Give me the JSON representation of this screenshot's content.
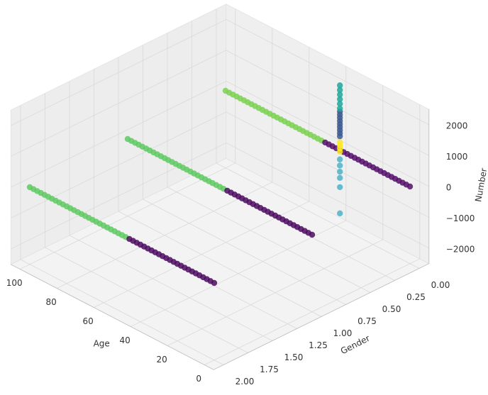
{
  "chart_data": {
    "type": "scatter3d",
    "xlabel": "Age",
    "ylabel": "Gender",
    "zlabel": "Number",
    "xlim": [
      -5,
      105
    ],
    "ylim": [
      -0.1,
      2.1
    ],
    "zlim": [
      -2500,
      2500
    ],
    "xticks": [
      0,
      20,
      40,
      60,
      80,
      100
    ],
    "yticks": [
      {
        "value": 0,
        "label": "0.00"
      },
      {
        "value": 0.25,
        "label": "0.25"
      },
      {
        "value": 0.5,
        "label": "0.50"
      },
      {
        "value": 0.75,
        "label": "0.75"
      },
      {
        "value": 1,
        "label": "1.00"
      },
      {
        "value": 1.25,
        "label": "1.25"
      },
      {
        "value": 1.5,
        "label": "1.50"
      },
      {
        "value": 1.75,
        "label": "1.75"
      },
      {
        "value": 2,
        "label": "2.00"
      }
    ],
    "zticks": [
      {
        "value": -2000,
        "label": "−2000"
      },
      {
        "value": -1000,
        "label": "−1000"
      },
      0,
      1000,
      2000
    ],
    "grid": true,
    "series": [
      {
        "color": "#7ad151",
        "x": [
          48,
          50,
          52,
          54,
          56,
          58,
          60,
          62,
          64,
          66,
          68,
          70,
          72,
          74,
          76,
          78,
          80,
          82,
          84,
          86,
          88,
          90,
          92,
          94,
          96,
          98,
          100
        ],
        "y": [
          0,
          0,
          0,
          0,
          0,
          0,
          0,
          0,
          0,
          0,
          0,
          0,
          0,
          0,
          0,
          0,
          0,
          0,
          0,
          0,
          0,
          0,
          0,
          0,
          0,
          0,
          0
        ],
        "z": [
          0,
          0,
          0,
          0,
          0,
          0,
          0,
          0,
          0,
          0,
          0,
          0,
          0,
          0,
          0,
          0,
          0,
          0,
          0,
          0,
          0,
          0,
          0,
          0,
          0,
          0,
          0
        ]
      },
      {
        "color": "#540e6a",
        "x": [
          0,
          2,
          4,
          6,
          8,
          10,
          12,
          14,
          16,
          18,
          20,
          22,
          24,
          26,
          28,
          30,
          32,
          34,
          36,
          38,
          40,
          42,
          44,
          46
        ],
        "y": [
          0,
          0,
          0,
          0,
          0,
          0,
          0,
          0,
          0,
          0,
          0,
          0,
          0,
          0,
          0,
          0,
          0,
          0,
          0,
          0,
          0,
          0,
          0,
          0
        ],
        "z": [
          0,
          0,
          0,
          0,
          0,
          0,
          0,
          0,
          0,
          0,
          0,
          0,
          0,
          0,
          0,
          0,
          0,
          0,
          0,
          0,
          0,
          0,
          0,
          0
        ]
      },
      {
        "color": "#4eb3c9",
        "x": [
          38,
          38,
          38,
          38,
          38,
          38
        ],
        "y": [
          0,
          0,
          0,
          0,
          0,
          0
        ],
        "z": [
          -300,
          -500,
          -700,
          -900,
          -1200,
          -2050
        ]
      },
      {
        "color": "#3e5a8f",
        "x": [
          38,
          38,
          38,
          38,
          38,
          38,
          38,
          38,
          38
        ],
        "y": [
          0,
          0,
          0,
          0,
          0,
          0,
          0,
          0,
          0
        ],
        "z": [
          1250,
          1150,
          1050,
          950,
          850,
          750,
          650,
          550,
          450
        ]
      },
      {
        "color": "#fde725",
        "x": [
          38,
          38,
          38,
          38
        ],
        "y": [
          0,
          0,
          0,
          0
        ],
        "z": [
          250,
          150,
          50,
          -50
        ]
      },
      {
        "color": "#1fa79a",
        "x": [
          38,
          38,
          38,
          38,
          38,
          38
        ],
        "y": [
          0,
          0,
          0,
          0,
          0,
          0
        ],
        "z": [
          2100,
          1950,
          1800,
          1650,
          1500,
          1350
        ]
      },
      {
        "color": "#5ec962",
        "x": [
          48,
          50,
          52,
          54,
          56,
          58,
          60,
          62,
          64,
          66,
          68,
          70,
          72,
          74,
          76,
          78,
          80,
          82,
          84,
          86,
          88,
          90,
          92,
          94,
          96,
          98,
          100
        ],
        "y": [
          1,
          1,
          1,
          1,
          1,
          1,
          1,
          1,
          1,
          1,
          1,
          1,
          1,
          1,
          1,
          1,
          1,
          1,
          1,
          1,
          1,
          1,
          1,
          1,
          1,
          1,
          1
        ],
        "z": [
          0,
          0,
          0,
          0,
          0,
          0,
          0,
          0,
          0,
          0,
          0,
          0,
          0,
          0,
          0,
          0,
          0,
          0,
          0,
          0,
          0,
          0,
          0,
          0,
          0,
          0,
          0
        ]
      },
      {
        "color": "#4b0a60",
        "x": [
          0,
          2,
          4,
          6,
          8,
          10,
          12,
          14,
          16,
          18,
          20,
          22,
          24,
          26,
          28,
          30,
          32,
          34,
          36,
          38,
          40,
          42,
          44,
          46
        ],
        "y": [
          1,
          1,
          1,
          1,
          1,
          1,
          1,
          1,
          1,
          1,
          1,
          1,
          1,
          1,
          1,
          1,
          1,
          1,
          1,
          1,
          1,
          1,
          1,
          1
        ],
        "z": [
          0,
          0,
          0,
          0,
          0,
          0,
          0,
          0,
          0,
          0,
          0,
          0,
          0,
          0,
          0,
          0,
          0,
          0,
          0,
          0,
          0,
          0,
          0,
          0
        ]
      },
      {
        "color": "#5ec962",
        "x": [
          48,
          50,
          52,
          54,
          56,
          58,
          60,
          62,
          64,
          66,
          68,
          70,
          72,
          74,
          76,
          78,
          80,
          82,
          84,
          86,
          88,
          90,
          92,
          94,
          96,
          98,
          100
        ],
        "y": [
          2,
          2,
          2,
          2,
          2,
          2,
          2,
          2,
          2,
          2,
          2,
          2,
          2,
          2,
          2,
          2,
          2,
          2,
          2,
          2,
          2,
          2,
          2,
          2,
          2,
          2,
          2
        ],
        "z": [
          0,
          0,
          0,
          0,
          0,
          0,
          0,
          0,
          0,
          0,
          0,
          0,
          0,
          0,
          0,
          0,
          0,
          0,
          0,
          0,
          0,
          0,
          0,
          0,
          0,
          0,
          0
        ]
      },
      {
        "color": "#4b0a60",
        "x": [
          0,
          2,
          4,
          6,
          8,
          10,
          12,
          14,
          16,
          18,
          20,
          22,
          24,
          26,
          28,
          30,
          32,
          34,
          36,
          38,
          40,
          42,
          44,
          46
        ],
        "y": [
          2,
          2,
          2,
          2,
          2,
          2,
          2,
          2,
          2,
          2,
          2,
          2,
          2,
          2,
          2,
          2,
          2,
          2,
          2,
          2,
          2,
          2,
          2,
          2
        ],
        "z": [
          0,
          0,
          0,
          0,
          0,
          0,
          0,
          0,
          0,
          0,
          0,
          0,
          0,
          0,
          0,
          0,
          0,
          0,
          0,
          0,
          0,
          0,
          0,
          0
        ]
      }
    ]
  }
}
